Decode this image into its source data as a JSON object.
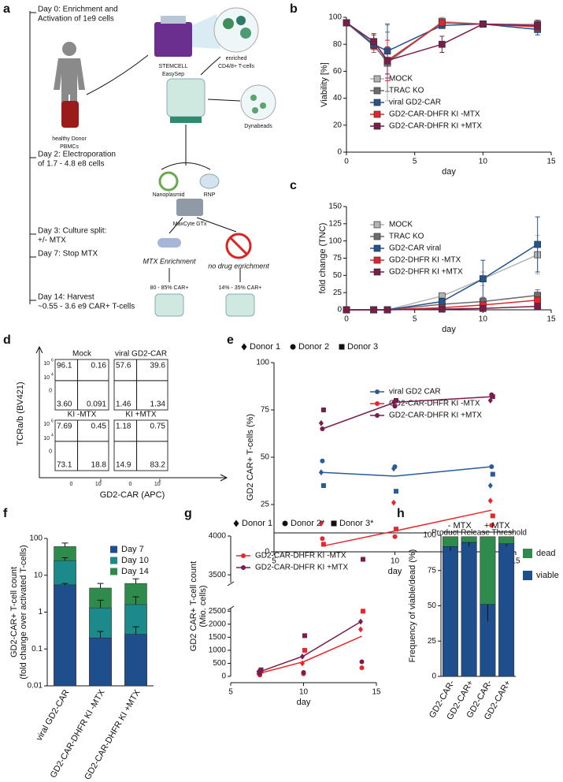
{
  "diagram_a": {
    "panel": "a",
    "timeline": [
      [
        "Day 0: Enrichment and",
        "Activation of 1e9 cells"
      ],
      [
        "Day 2: Electroporation",
        "of 1.7 - 4.8 e8 cells"
      ],
      [
        "Day 3: Culture split:",
        "+/- MTX"
      ],
      [
        "Day 7: Stop MTX"
      ],
      [
        "Day 14: Harvest",
        "~0.55 - 3.6 e9 CAR+ T-cells"
      ]
    ],
    "labels": [
      [
        "healthy Donor",
        "PBMCs"
      ],
      [
        "STEMCELL",
        "EasySep"
      ],
      [
        "enriched",
        "CD4/8+ T-cells"
      ],
      [
        "Dynabeads"
      ],
      [
        "Nanoplasmid"
      ],
      [
        "RNP"
      ],
      [
        "MaxCyte GTx"
      ],
      [
        "MTX Enrichment"
      ],
      [
        "no drug enrichment"
      ],
      [
        "80 - 85%  CAR+"
      ],
      [
        "14% - 35% CAR+"
      ]
    ]
  },
  "flow_d": {
    "panel": "d",
    "ylabel": "TCRa/b (BV421)",
    "xlabel": "GD2-CAR (APC)",
    "yticks": [
      {
        "base": "10",
        "exp": "6"
      },
      {
        "base": "10",
        "exp": "4"
      },
      "0"
    ],
    "xticks": [
      "0",
      {
        "base": "10",
        "exp": "6"
      }
    ],
    "plots": [
      {
        "title": "Mock",
        "quadrants": [
          "96.1",
          "0.16",
          "3.60",
          "0.091"
        ]
      },
      {
        "title": "viral GD2-CAR",
        "quadrants": [
          "57.6",
          "39.6",
          "1.46",
          "1.34"
        ]
      },
      {
        "title": "KI -MTX",
        "quadrants": [
          "7.69",
          "0.45",
          "73.1",
          "18.8"
        ]
      },
      {
        "title": "KI +MTX",
        "quadrants": [
          "1.18",
          "0.75",
          "14.9",
          "83.2"
        ]
      }
    ]
  },
  "chart_data": [
    {
      "panel": "b",
      "type": "line",
      "marker": "square",
      "xlabel": "day",
      "ylabel": "Viability [%]",
      "x": [
        0,
        2,
        3,
        7,
        10,
        14
      ],
      "xlim": [
        0,
        15
      ],
      "xticks": [
        0,
        5,
        10,
        15
      ],
      "ylim": [
        0,
        100
      ],
      "yticks": [
        0,
        20,
        40,
        60,
        80,
        100
      ],
      "series": [
        {
          "name": "MOCK",
          "color": "#b3b3b3",
          "values": [
            96,
            80,
            66,
            97,
            95,
            95
          ],
          "errors": [
            0,
            4,
            28,
            3,
            1,
            3
          ]
        },
        {
          "name": "TRAC KO",
          "color": "#6d6d6d",
          "values": [
            96,
            79,
            67,
            96,
            95,
            94
          ],
          "errors": [
            0,
            5,
            22,
            3,
            1,
            4
          ]
        },
        {
          "name": "viral GD2-CAR",
          "color": "#24558f",
          "values": [
            96,
            80,
            75,
            94,
            95,
            91
          ],
          "errors": [
            0,
            4,
            20,
            2,
            1,
            4
          ]
        },
        {
          "name": "GD2-CAR-DHFR KI -MTX",
          "color": "#e3262b",
          "values": [
            96,
            82,
            68,
            96,
            95,
            93
          ],
          "errors": [
            0,
            6,
            15,
            2,
            1,
            3
          ]
        },
        {
          "name": "GD2-CAR-DHFR KI +MTX",
          "color": "#7b1c4c",
          "values": [
            96,
            82,
            68,
            80,
            95,
            94
          ],
          "errors": [
            0,
            5,
            10,
            6,
            1,
            3
          ]
        }
      ]
    },
    {
      "panel": "c",
      "type": "line",
      "marker": "square",
      "xlabel": "day",
      "ylabel": "fold change (TNC)",
      "x": [
        0,
        2,
        3,
        7,
        10,
        14
      ],
      "xlim": [
        0,
        15
      ],
      "xticks": [
        0,
        5,
        10,
        15
      ],
      "ylim": [
        0,
        150
      ],
      "yticks": [
        0,
        25,
        50,
        75,
        100,
        125,
        150
      ],
      "series": [
        {
          "name": "MOCK",
          "color": "#b3b3b3",
          "values": [
            0,
            0,
            0,
            20,
            45,
            80
          ],
          "errors": [
            0,
            0,
            0,
            4,
            10,
            28
          ]
        },
        {
          "name": "TRAC KO",
          "color": "#6d6d6d",
          "values": [
            0,
            0,
            0,
            8,
            12,
            21
          ],
          "errors": [
            0,
            0,
            0,
            2,
            4,
            8
          ]
        },
        {
          "name": "GD2-CAR viral",
          "color": "#24558f",
          "values": [
            0,
            0,
            0,
            12,
            45,
            95
          ],
          "errors": [
            0,
            0,
            0,
            5,
            27,
            40
          ]
        },
        {
          "name": "GD2-DHFR KI -MTX",
          "color": "#e3262b",
          "values": [
            0,
            0,
            0,
            3,
            7,
            14
          ],
          "errors": [
            0,
            0,
            0,
            1,
            3,
            5
          ]
        },
        {
          "name": "GD2-DHFR KI +MTX",
          "color": "#7b1c4c",
          "values": [
            0,
            0,
            0,
            1,
            2,
            5
          ],
          "errors": [
            0,
            0,
            0,
            0.5,
            1,
            2
          ]
        }
      ]
    },
    {
      "panel": "e",
      "type": "line",
      "marker": "circle",
      "xlabel": "day",
      "ylabel": "GD2 CAR+ T-cells (%)",
      "x": [
        7,
        10,
        14
      ],
      "xlim": [
        5,
        15
      ],
      "xticks": [
        5,
        10,
        15
      ],
      "ylim": [
        0,
        100
      ],
      "yticks": [
        0,
        25,
        50,
        75,
        100
      ],
      "donor_legend": [
        "Donor 1",
        "Donor 2",
        "Donor 3"
      ],
      "donor_markers": [
        "diamond",
        "circle",
        "square"
      ],
      "threshold": {
        "value": 10,
        "label": "Product Release Threshold"
      },
      "series": [
        {
          "name": "viral GD2 CAR",
          "color": "#2a5a9a",
          "values": [
            42,
            40,
            45
          ],
          "donors": [
            [
              42,
              44,
              35
            ],
            [
              48,
              45,
              45
            ],
            [
              35,
              32,
              41
            ]
          ]
        },
        {
          "name": "GD2-CAR-DHFR KI -MTX",
          "color": "#e8262b",
          "values": [
            3,
            11,
            22
          ],
          "donors": [
            [
              15,
              26,
              27
            ],
            [
              7,
              8,
              14
            ],
            [
              4,
              12,
              19
            ]
          ]
        },
        {
          "name": "GD2-CAR-DHFR KI +MTX",
          "color": "#7b1c4c",
          "values": [
            65,
            79,
            82
          ],
          "donors": [
            [
              68,
              79,
              80
            ],
            [
              65,
              77,
              83
            ],
            [
              75,
              80,
              82
            ]
          ]
        }
      ]
    },
    {
      "panel": "f",
      "type": "bar",
      "yscale": "log",
      "overlay": true,
      "ylabel": [
        "GD2-CAR+ T-cell count",
        "(fold change over activated T-cells)"
      ],
      "categories": [
        "viral GD2-CAR",
        "GD2-CAR-DHFR KI -MTX",
        "GD2-CAR-DHFR KI +MTX"
      ],
      "ylim": [
        0.01,
        100
      ],
      "yticks": [
        0.01,
        0.1,
        1,
        10,
        100
      ],
      "series": [
        {
          "name": "Day 7",
          "color": "#1f4e8c",
          "values": [
            5.5,
            0.2,
            0.25
          ],
          "errors": [
            0.5,
            0.1,
            0.15
          ]
        },
        {
          "name": "Day 10",
          "color": "#1c8a8a",
          "values": [
            25,
            1.3,
            1.6
          ],
          "errors": [
            5,
            0.8,
            1
          ]
        },
        {
          "name": "Day 14",
          "color": "#2f8b4b",
          "values": [
            60,
            4.5,
            6
          ],
          "errors": [
            15,
            1.5,
            2
          ]
        }
      ]
    },
    {
      "panel": "g",
      "type": "line",
      "marker": "circle",
      "xlabel": "day",
      "ylabel": [
        "GD2 CAR+ T-cell count",
        "(Mio. cells)"
      ],
      "x": [
        7,
        10,
        14
      ],
      "xlim": [
        5,
        15
      ],
      "xticks": [
        5,
        10,
        15
      ],
      "ylim": [
        0,
        2600
      ],
      "yticks": [
        0,
        500,
        1000,
        1500,
        2000,
        2500
      ],
      "ylim_upper": [
        3400,
        4000
      ],
      "yticks_upper": [
        3500,
        4000
      ],
      "donor_legend": [
        "Donor 1",
        "Donor 2*",
        "Donor 3*"
      ],
      "donor_markers": [
        "diamond",
        "circle",
        "square"
      ],
      "series": [
        {
          "name": "GD2-CAR-DHFR KI -MTX",
          "color": "#e8262b",
          "values": [
            120,
            560,
            1540
          ],
          "donors": [
            [
              100,
              500,
              1800
            ],
            [
              50,
              100,
              330
            ],
            [
              200,
              1000,
              2500
            ]
          ]
        },
        {
          "name": "GD2-CAR-DHFR KI +MTX",
          "color": "#7b1c4c",
          "values": [
            180,
            780,
            2120
          ],
          "donors": [
            [
              180,
              760,
              2100
            ],
            [
              100,
              150,
              560
            ],
            [
              250,
              1560,
              3700
            ]
          ]
        }
      ]
    },
    {
      "panel": "h",
      "type": "bar",
      "stacked": true,
      "ylabel": "Frequency of viable/dead (%)",
      "categories": [
        "GD2-CAR-",
        "GD2-CAR+",
        "GD2-CAR-",
        "GD2-CAR+"
      ],
      "group_labels": [
        "- MTX",
        "+ MTX"
      ],
      "ylim": [
        0,
        100
      ],
      "yticks": [
        0,
        25,
        50,
        75,
        100
      ],
      "series": [
        {
          "name": "viable",
          "color": "#1f4e8c",
          "values": [
            92,
            95,
            51,
            94
          ],
          "errors": [
            3,
            3,
            12,
            2
          ]
        },
        {
          "name": "dead",
          "color": "#2f8b4b",
          "values": [
            7,
            4,
            48,
            5
          ]
        }
      ]
    }
  ]
}
